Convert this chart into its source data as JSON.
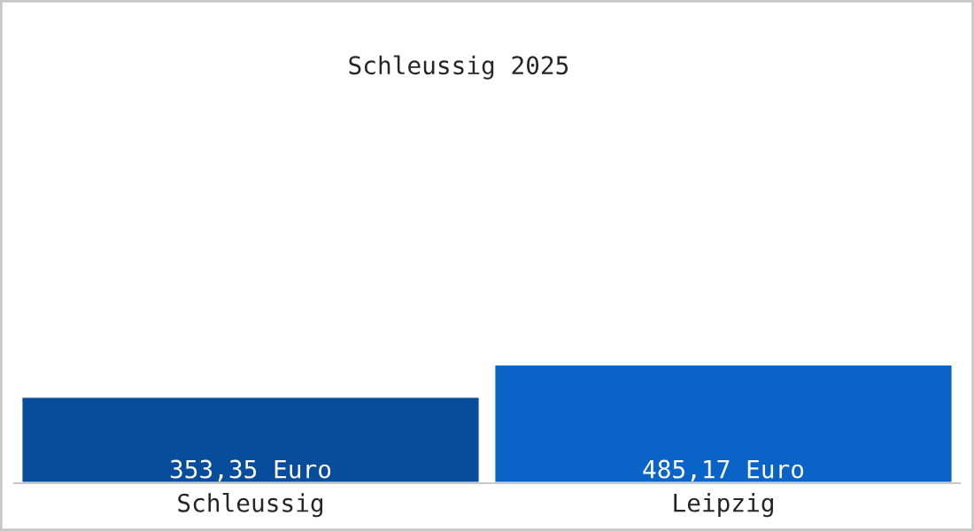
{
  "chart_data": {
    "type": "bar",
    "title": "Schleussig 2025",
    "categories": [
      "Schleussig",
      "Leipzig"
    ],
    "values": [
      353.35,
      485.17
    ],
    "colors": [
      "#084c9c",
      "#0a64c8"
    ],
    "value_labels": [
      "353,35 Euro",
      "485,17 Euro"
    ],
    "ylim": [
      0,
      1950
    ],
    "grid": false,
    "legend": false
  }
}
